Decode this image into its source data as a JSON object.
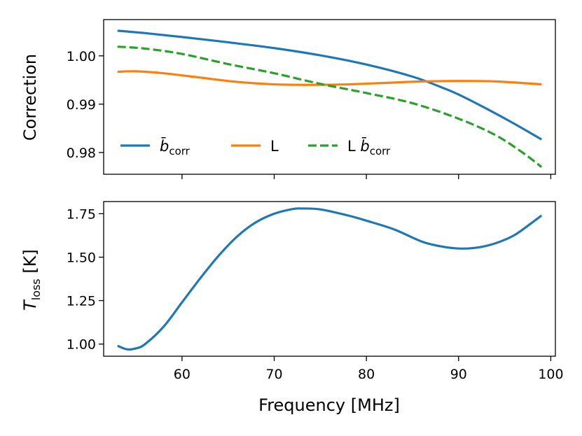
{
  "chart_data": [
    {
      "type": "line",
      "panel": "top",
      "ylabel": "Correction",
      "xlabel": "",
      "xlim": [
        51.5,
        100.5
      ],
      "ylim": [
        0.9755,
        1.0075
      ],
      "xticks": [
        60,
        70,
        80,
        90,
        100
      ],
      "show_x_tick_labels": false,
      "yticks": [
        0.98,
        0.99,
        1.0
      ],
      "ytick_labels": [
        "0.98",
        "0.99",
        "1.00"
      ],
      "grid": false,
      "legend": {
        "placement": "lower-left",
        "ncol": 3,
        "entries": [
          {
            "label_base": "b̄",
            "label_sub": "corr",
            "series": 0
          },
          {
            "label_base": "L",
            "label_sub": "",
            "series": 1
          },
          {
            "label_base": "L b̄",
            "label_sub": "corr",
            "series": 2
          }
        ]
      },
      "series": [
        {
          "name": "b_corr",
          "color": "#1f77b4",
          "style": "solid",
          "x": [
            53,
            56,
            60,
            65,
            70,
            75,
            80,
            85,
            88,
            90,
            93,
            96,
            99
          ],
          "y": [
            1.0052,
            1.0047,
            1.0039,
            1.0028,
            1.0016,
            1.0001,
            0.9982,
            0.9957,
            0.9936,
            0.992,
            0.9891,
            0.986,
            0.9827
          ]
        },
        {
          "name": "L",
          "color": "#ff7f0e",
          "style": "solid",
          "x": [
            53,
            55,
            58,
            62,
            66,
            70,
            74,
            78,
            82,
            86,
            90,
            94,
            99
          ],
          "y": [
            0.9967,
            0.9968,
            0.9964,
            0.9955,
            0.9946,
            0.9941,
            0.994,
            0.9941,
            0.9944,
            0.9947,
            0.9948,
            0.9947,
            0.9941
          ]
        },
        {
          "name": "L_b_corr",
          "color": "#2ca02c",
          "style": "dashed",
          "x": [
            53,
            56,
            60,
            65,
            70,
            75,
            80,
            85,
            90,
            94,
            97,
            99
          ],
          "y": [
            1.0019,
            1.0015,
            1.0004,
            0.9983,
            0.9964,
            0.9942,
            0.9923,
            0.9902,
            0.987,
            0.9836,
            0.9799,
            0.977
          ]
        }
      ]
    },
    {
      "type": "line",
      "panel": "bottom",
      "ylabel_base": "T",
      "ylabel_sub": "loss",
      "ylabel_unit": " [K]",
      "xlabel": "Frequency [MHz]",
      "xlim": [
        51.5,
        100.5
      ],
      "ylim": [
        0.93,
        1.82
      ],
      "xticks": [
        60,
        70,
        80,
        90,
        100
      ],
      "xtick_labels": [
        "60",
        "70",
        "80",
        "90",
        "100"
      ],
      "yticks": [
        1.0,
        1.25,
        1.5,
        1.75
      ],
      "ytick_labels": [
        "1.00",
        "1.25",
        "1.50",
        "1.75"
      ],
      "grid": false,
      "series": [
        {
          "name": "T_loss",
          "color": "#1f77b4",
          "style": "solid",
          "x": [
            53,
            54,
            55,
            56,
            58,
            60,
            62,
            64,
            66,
            68,
            70,
            72,
            73,
            75,
            78,
            80,
            83,
            86,
            88,
            90,
            92,
            94,
            96,
            98,
            99
          ],
          "y": [
            0.99,
            0.97,
            0.975,
            1.0,
            1.1,
            1.24,
            1.38,
            1.51,
            1.62,
            1.7,
            1.75,
            1.777,
            1.78,
            1.775,
            1.74,
            1.71,
            1.66,
            1.59,
            1.563,
            1.55,
            1.555,
            1.58,
            1.625,
            1.7,
            1.74
          ]
        }
      ]
    }
  ]
}
